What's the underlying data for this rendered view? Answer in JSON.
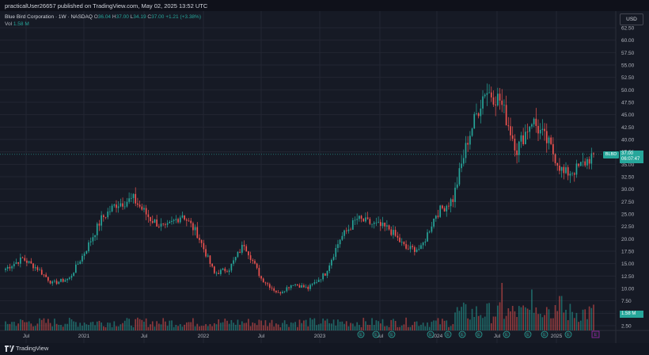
{
  "header": {
    "published": "practicalUser26657 published on TradingView.com, May 02, 2025 13:52 UTC"
  },
  "legend": {
    "name": "Blue Bird Corporation · 1W · NASDAQ",
    "o_label": "O",
    "o": "36.04",
    "h_label": "H",
    "h": "37.00",
    "l_label": "L",
    "l": "34.19",
    "c_label": "C",
    "c": "37.00",
    "change": "+1.21 (+3.38%)",
    "vol_label": "Vol",
    "vol": "1.58 M"
  },
  "currency": "USD",
  "last_price": {
    "ticker": "BLBD",
    "price": "37.00",
    "countdown": "06:07:47"
  },
  "volume_label": "1.58 M",
  "footer": {
    "brand": "TradingView"
  },
  "colors": {
    "up": "#26a69a",
    "down": "#ef5350",
    "bg": "#161a25",
    "grid": "#232632",
    "earnings": "#26a69a",
    "dividend": "#9c27b0"
  },
  "chart_data": {
    "type": "candlestick",
    "y_ticks": [
      "62.50",
      "60.00",
      "57.50",
      "55.00",
      "52.50",
      "50.00",
      "47.50",
      "45.00",
      "42.50",
      "40.00",
      "37.50",
      "35.00",
      "32.50",
      "30.00",
      "27.50",
      "25.00",
      "22.50",
      "20.00",
      "17.50",
      "15.00",
      "12.50",
      "10.00",
      "7.50",
      "5.00",
      "2.50"
    ],
    "x_ticks": [
      "Jul",
      "2021",
      "Jul",
      "2022",
      "Jul",
      "2023",
      "Jul",
      "2024",
      "Jul",
      "2025"
    ],
    "ylim": [
      2.5,
      62.5
    ],
    "grid": true,
    "anchors": [
      [
        0,
        14
      ],
      [
        8,
        16
      ],
      [
        15,
        14
      ],
      [
        22,
        11
      ],
      [
        30,
        12
      ],
      [
        38,
        18
      ],
      [
        45,
        24
      ],
      [
        52,
        27
      ],
      [
        60,
        28
      ],
      [
        68,
        24
      ],
      [
        75,
        22
      ],
      [
        83,
        25
      ],
      [
        90,
        21
      ],
      [
        98,
        13
      ],
      [
        105,
        14
      ],
      [
        112,
        19
      ],
      [
        120,
        12
      ],
      [
        128,
        9
      ],
      [
        135,
        11
      ],
      [
        142,
        10
      ],
      [
        150,
        13
      ],
      [
        157,
        20
      ],
      [
        165,
        24
      ],
      [
        172,
        23
      ],
      [
        180,
        22
      ],
      [
        188,
        18
      ],
      [
        195,
        18
      ],
      [
        202,
        25
      ],
      [
        210,
        28
      ],
      [
        217,
        40
      ],
      [
        225,
        50
      ],
      [
        232,
        48
      ],
      [
        240,
        38
      ],
      [
        247,
        44
      ],
      [
        255,
        39
      ],
      [
        262,
        33
      ],
      [
        268,
        34
      ],
      [
        271,
        35
      ],
      [
        276,
        37
      ]
    ],
    "earnings_markers": [
      "E",
      "E",
      "E",
      "E",
      "E",
      "E",
      "E",
      "E",
      "E",
      "E",
      "E",
      "E",
      "E"
    ],
    "dividend_marker": "E"
  }
}
